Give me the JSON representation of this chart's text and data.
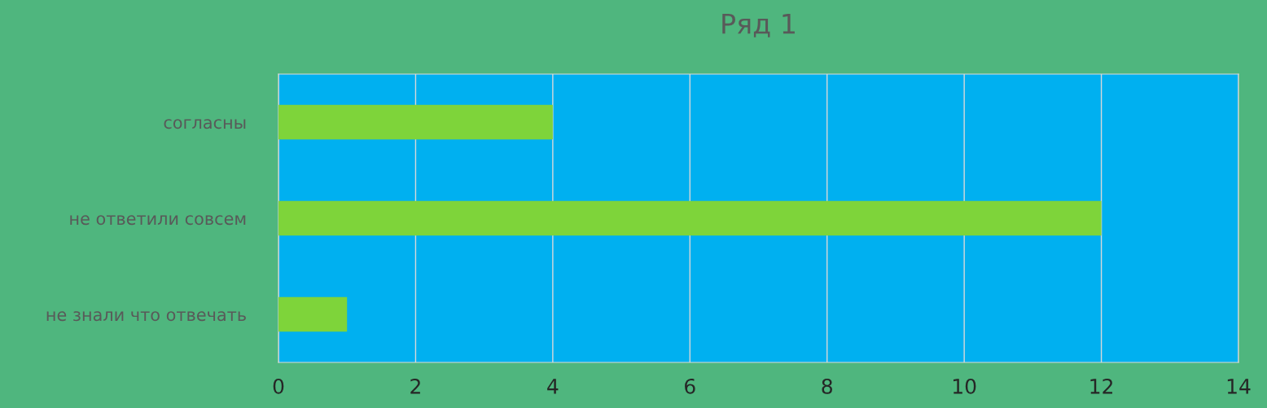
{
  "chart_data": {
    "type": "bar",
    "orientation": "horizontal",
    "title": "Ряд 1",
    "categories": [
      "согласны",
      "не ответили совсем",
      "не знали что отвечать"
    ],
    "values": [
      4,
      12,
      1
    ],
    "color": "#7ed43a",
    "xlim": [
      0,
      14
    ],
    "xticks": [
      0,
      2,
      4,
      6,
      8,
      10,
      12,
      14
    ],
    "grid": "x"
  }
}
